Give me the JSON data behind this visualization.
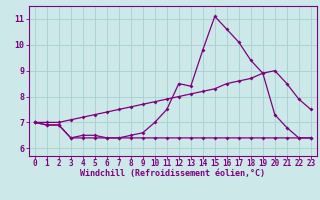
{
  "x": [
    0,
    1,
    2,
    3,
    4,
    5,
    6,
    7,
    8,
    9,
    10,
    11,
    12,
    13,
    14,
    15,
    16,
    17,
    18,
    19,
    20,
    21,
    22,
    23
  ],
  "line1": [
    7.0,
    6.9,
    6.9,
    6.4,
    6.5,
    6.5,
    6.4,
    6.4,
    6.5,
    6.6,
    7.0,
    7.5,
    8.5,
    8.4,
    9.8,
    11.1,
    10.6,
    10.1,
    9.4,
    8.9,
    7.3,
    6.8,
    6.4,
    6.4
  ],
  "line2": [
    7.0,
    7.0,
    7.0,
    7.1,
    7.2,
    7.3,
    7.4,
    7.5,
    7.6,
    7.7,
    7.8,
    7.9,
    8.0,
    8.1,
    8.2,
    8.3,
    8.5,
    8.6,
    8.7,
    8.9,
    9.0,
    8.5,
    7.9,
    7.5
  ],
  "line3": [
    7.0,
    6.9,
    6.9,
    6.4,
    6.4,
    6.4,
    6.4,
    6.4,
    6.4,
    6.4,
    6.4,
    6.4,
    6.4,
    6.4,
    6.4,
    6.4,
    6.4,
    6.4,
    6.4,
    6.4,
    6.4,
    6.4,
    6.4,
    6.4
  ],
  "line_color": "#800080",
  "bg_color": "#cce8e8",
  "grid_color": "#aad4d4",
  "xlabel": "Windchill (Refroidissement éolien,°C)",
  "ylim": [
    5.7,
    11.5
  ],
  "xlim": [
    -0.5,
    23.5
  ],
  "yticks": [
    6,
    7,
    8,
    9,
    10,
    11
  ],
  "xticks": [
    0,
    1,
    2,
    3,
    4,
    5,
    6,
    7,
    8,
    9,
    10,
    11,
    12,
    13,
    14,
    15,
    16,
    17,
    18,
    19,
    20,
    21,
    22,
    23
  ],
  "tick_fontsize": 5.5,
  "xlabel_fontsize": 6.0,
  "marker_size": 2.0,
  "linewidth": 0.9
}
